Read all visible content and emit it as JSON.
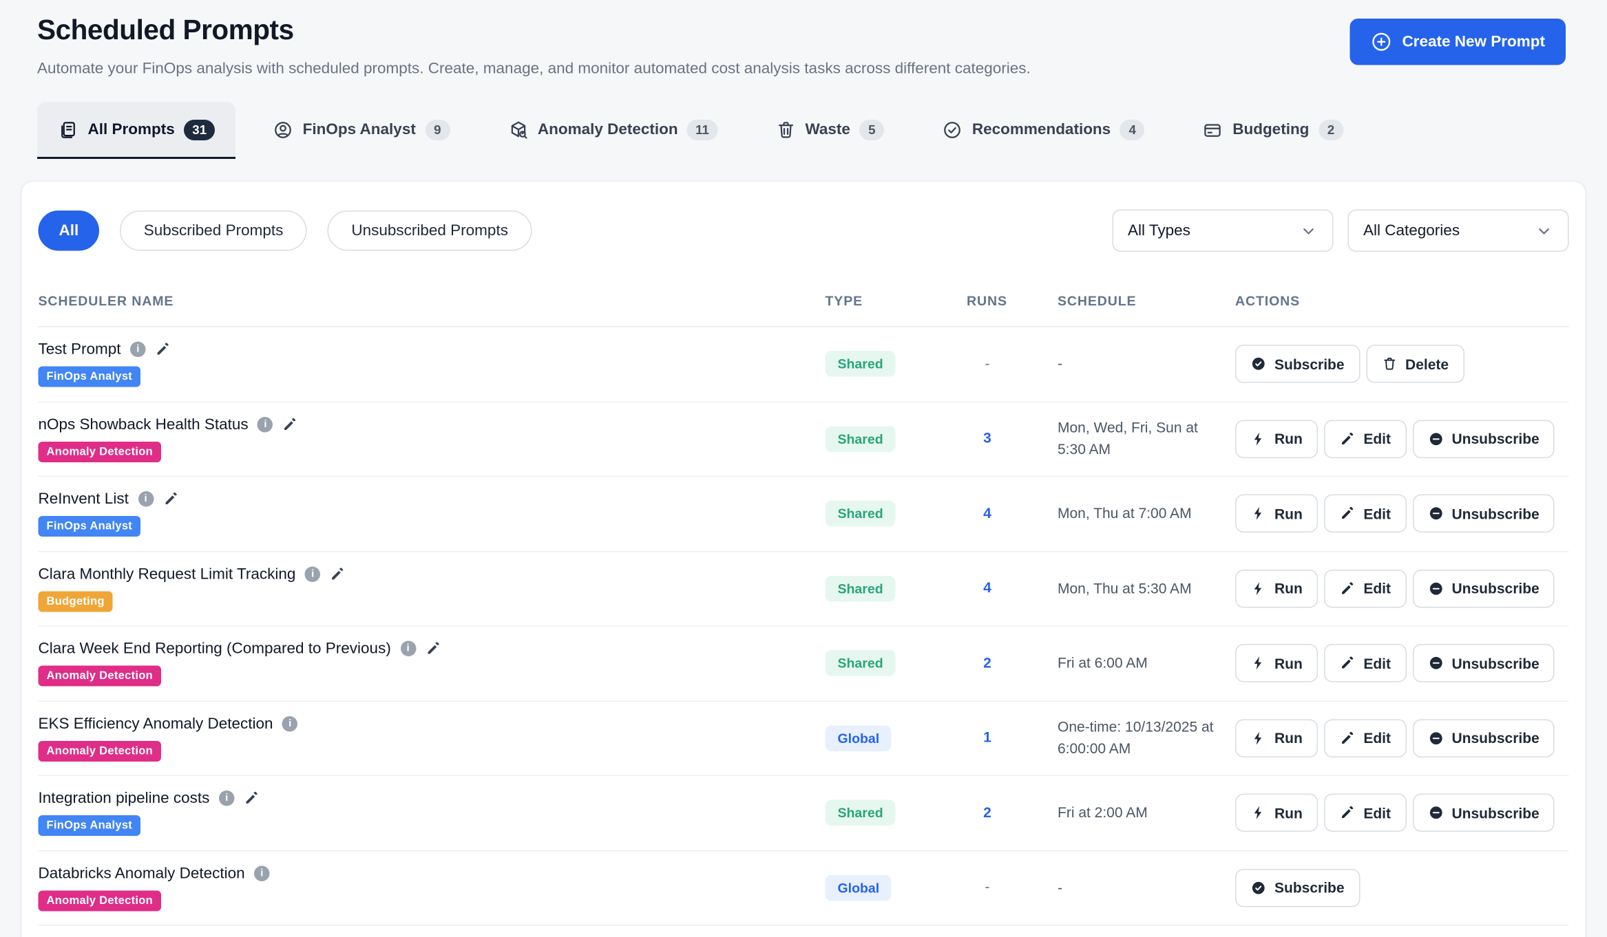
{
  "page": {
    "title": "Scheduled Prompts",
    "subtitle": "Automate your FinOps analysis with scheduled prompts. Create, manage, and monitor automated cost analysis tasks across different categories.",
    "create_button": "Create New Prompt"
  },
  "tabs": [
    {
      "label": "All Prompts",
      "count": "31",
      "icon": "document-icon",
      "active": true
    },
    {
      "label": "FinOps Analyst",
      "count": "9",
      "icon": "person-icon",
      "active": false
    },
    {
      "label": "Anomaly Detection",
      "count": "11",
      "icon": "box-search-icon",
      "active": false
    },
    {
      "label": "Waste",
      "count": "5",
      "icon": "trash-icon",
      "active": false
    },
    {
      "label": "Recommendations",
      "count": "4",
      "icon": "check-circle-icon",
      "active": false
    },
    {
      "label": "Budgeting",
      "count": "2",
      "icon": "wallet-icon",
      "active": false
    }
  ],
  "filters": {
    "pills": [
      {
        "label": "All",
        "active": true
      },
      {
        "label": "Subscribed Prompts",
        "active": false
      },
      {
        "label": "Unsubscribed Prompts",
        "active": false
      }
    ],
    "type_select": "All Types",
    "category_select": "All Categories"
  },
  "table": {
    "columns": [
      "SCHEDULER NAME",
      "TYPE",
      "RUNS",
      "SCHEDULE",
      "ACTIONS"
    ],
    "rows": [
      {
        "name": "Test Prompt",
        "editable_name": true,
        "category": "FinOps Analyst",
        "type": "Shared",
        "runs": "-",
        "schedule": "-",
        "actions": [
          {
            "label": "Subscribe",
            "icon": "badge-check-icon"
          },
          {
            "label": "Delete",
            "icon": "trash-icon"
          }
        ]
      },
      {
        "name": "nOps Showback Health Status",
        "editable_name": true,
        "category": "Anomaly Detection",
        "type": "Shared",
        "runs": "3",
        "schedule": "Mon, Wed, Fri, Sun at 5:30 AM",
        "actions": [
          {
            "label": "Run",
            "icon": "lightning-icon"
          },
          {
            "label": "Edit",
            "icon": "pencil-icon"
          },
          {
            "label": "Unsubscribe",
            "icon": "minus-circle-icon"
          }
        ]
      },
      {
        "name": "ReInvent List",
        "editable_name": true,
        "category": "FinOps Analyst",
        "type": "Shared",
        "runs": "4",
        "schedule": "Mon, Thu at 7:00 AM",
        "actions": [
          {
            "label": "Run",
            "icon": "lightning-icon"
          },
          {
            "label": "Edit",
            "icon": "pencil-icon"
          },
          {
            "label": "Unsubscribe",
            "icon": "minus-circle-icon"
          }
        ]
      },
      {
        "name": "Clara Monthly Request Limit Tracking",
        "editable_name": true,
        "category": "Budgeting",
        "type": "Shared",
        "runs": "4",
        "schedule": "Mon, Thu at 5:30 AM",
        "actions": [
          {
            "label": "Run",
            "icon": "lightning-icon"
          },
          {
            "label": "Edit",
            "icon": "pencil-icon"
          },
          {
            "label": "Unsubscribe",
            "icon": "minus-circle-icon"
          }
        ]
      },
      {
        "name": "Clara Week End Reporting (Compared to Previous)",
        "editable_name": true,
        "category": "Anomaly Detection",
        "type": "Shared",
        "runs": "2",
        "schedule": "Fri at 6:00 AM",
        "actions": [
          {
            "label": "Run",
            "icon": "lightning-icon"
          },
          {
            "label": "Edit",
            "icon": "pencil-icon"
          },
          {
            "label": "Unsubscribe",
            "icon": "minus-circle-icon"
          }
        ]
      },
      {
        "name": "EKS Efficiency Anomaly Detection",
        "editable_name": false,
        "category": "Anomaly Detection",
        "type": "Global",
        "runs": "1",
        "schedule": "One-time: 10/13/2025 at 6:00:00 AM",
        "actions": [
          {
            "label": "Run",
            "icon": "lightning-icon"
          },
          {
            "label": "Edit",
            "icon": "pencil-icon"
          },
          {
            "label": "Unsubscribe",
            "icon": "minus-circle-icon"
          }
        ]
      },
      {
        "name": "Integration pipeline costs",
        "editable_name": true,
        "category": "FinOps Analyst",
        "type": "Shared",
        "runs": "2",
        "schedule": "Fri at 2:00 AM",
        "actions": [
          {
            "label": "Run",
            "icon": "lightning-icon"
          },
          {
            "label": "Edit",
            "icon": "pencil-icon"
          },
          {
            "label": "Unsubscribe",
            "icon": "minus-circle-icon"
          }
        ]
      },
      {
        "name": "Databricks Anomaly Detection",
        "editable_name": false,
        "category": "Anomaly Detection",
        "type": "Global",
        "runs": "-",
        "schedule": "-",
        "actions": [
          {
            "label": "Subscribe",
            "icon": "badge-check-icon"
          }
        ]
      }
    ]
  },
  "colors": {
    "accent": "#2563eb",
    "category_colors": {
      "FinOps Analyst": "#4285f4",
      "Anomaly Detection": "#df2d88",
      "Budgeting": "#efa636"
    },
    "type_colors": {
      "Shared": {
        "bg": "#e6f7f0",
        "text": "#27a57c"
      },
      "Global": {
        "bg": "#e8f0fd",
        "text": "#2563eb"
      }
    }
  }
}
